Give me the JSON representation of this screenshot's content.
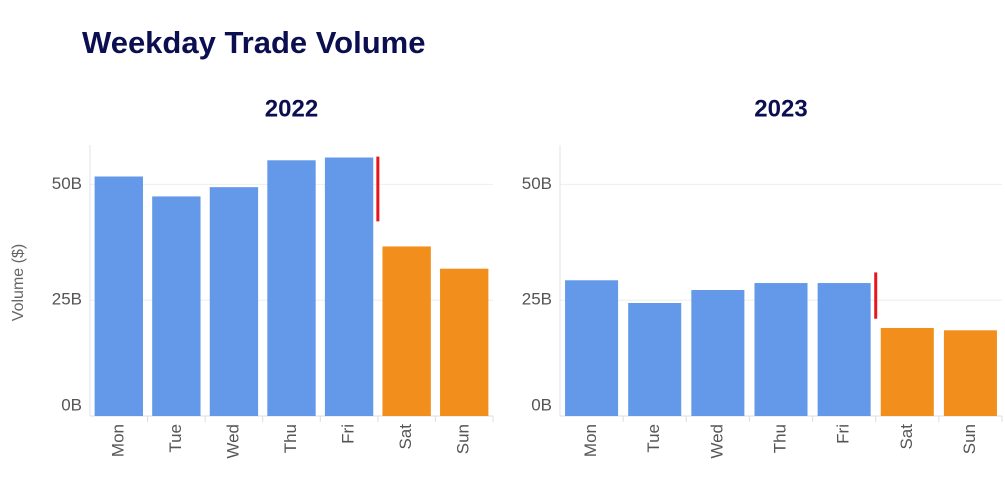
{
  "title": "Weekday Trade Volume",
  "chart_data": [
    {
      "type": "bar",
      "title": "2022",
      "ylabel": "Volume ($)",
      "categories": [
        "Mon",
        "Tue",
        "Wed",
        "Thu",
        "Fri",
        "Sat",
        "Sun"
      ],
      "values": [
        51.7,
        47.4,
        49.4,
        55.2,
        55.8,
        36.6,
        31.8
      ],
      "colors": [
        "#6399e8",
        "#6399e8",
        "#6399e8",
        "#6399e8",
        "#6399e8",
        "#f28e1c",
        "#f28e1c"
      ],
      "marker": [
        56,
        42
      ],
      "marker_color": "#e8161b",
      "ylim": [
        0,
        58.5
      ],
      "yticks": [
        {
          "value": 0,
          "label": "0B"
        },
        {
          "value": 25,
          "label": "25B"
        },
        {
          "value": 50,
          "label": "50B"
        }
      ],
      "grid": true
    },
    {
      "type": "bar",
      "title": "2023",
      "categories": [
        "Mon",
        "Tue",
        "Wed",
        "Thu",
        "Fri",
        "Sat",
        "Sun"
      ],
      "values": [
        29.3,
        24.4,
        27.2,
        28.7,
        28.7,
        19.0,
        18.5
      ],
      "colors": [
        "#6399e8",
        "#6399e8",
        "#6399e8",
        "#6399e8",
        "#6399e8",
        "#f28e1c",
        "#f28e1c"
      ],
      "marker": [
        31,
        21
      ],
      "marker_color": "#e8161b",
      "ylim": [
        0,
        58.5
      ],
      "yticks": [
        {
          "value": 0,
          "label": "0B"
        },
        {
          "value": 25,
          "label": "25B"
        },
        {
          "value": 50,
          "label": "50B"
        }
      ],
      "grid": true
    }
  ]
}
